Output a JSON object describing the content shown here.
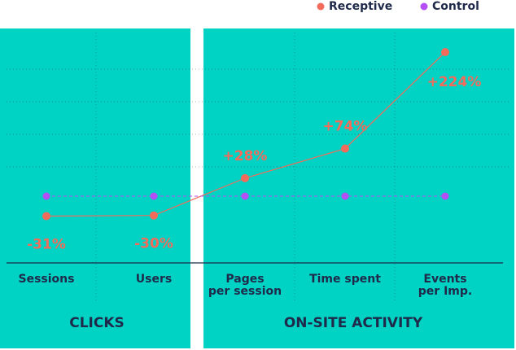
{
  "chart_data": {
    "type": "line",
    "categories": [
      [
        "Sessions"
      ],
      [
        "Users"
      ],
      [
        "Pages",
        "per session"
      ],
      [
        "Time spent"
      ],
      [
        "Events",
        "per Imp."
      ]
    ],
    "groups": [
      "CLICKS",
      "ON-SITE ACTIVITY"
    ],
    "series": [
      {
        "name": "Receptive",
        "color": "#f26b5b",
        "values": [
          -31,
          -30,
          28,
          74,
          224
        ],
        "value_labels": [
          "-31%",
          "-30%",
          "+28%",
          "+74%",
          "+224%"
        ]
      },
      {
        "name": "Control",
        "color": "#b44ef5",
        "values": [
          0,
          0,
          0,
          0,
          0
        ]
      }
    ]
  }
}
